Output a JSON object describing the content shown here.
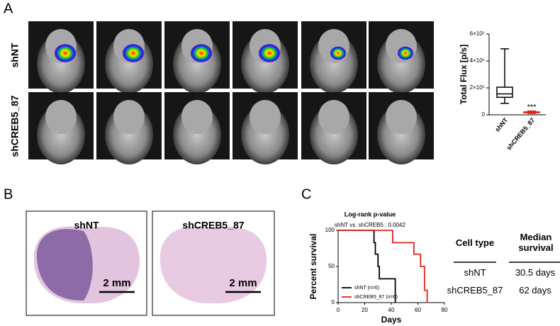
{
  "panels": {
    "a": "A",
    "b": "B",
    "c": "C"
  },
  "imaging": {
    "rows": [
      "shNT",
      "shCREB5_87"
    ]
  },
  "histology": {
    "titles": [
      "shNT",
      "shCREB5_87"
    ],
    "scale_bar": "2 mm"
  },
  "chart_data": [
    {
      "type": "box",
      "ylabel": "Total Flux [p/s]",
      "categories": [
        "shNT",
        "shCREB5_87"
      ],
      "boxes": [
        {
          "min": 85000,
          "q1": 130000,
          "median": 155000,
          "q3": 205000,
          "max": 490000,
          "color": "#000000"
        },
        {
          "min": 10000,
          "q1": 15000,
          "median": 18000,
          "q3": 22000,
          "max": 28000,
          "color": "#e8231f"
        }
      ],
      "annotation": "***",
      "ylim": [
        0,
        600000
      ],
      "yticks": [
        0,
        {
          "value": 200000,
          "label": "2×10⁵"
        },
        {
          "value": 400000,
          "label": "4×10⁵"
        },
        {
          "value": 600000,
          "label": "6×10⁵"
        }
      ]
    },
    {
      "type": "step",
      "title": "Log-rank p-value",
      "subtitle": "shNT vs. shCREB5 : 0.0042",
      "xlabel": "Days",
      "ylabel": "Percent survival",
      "xlim": [
        0,
        80
      ],
      "ylim": [
        0,
        100
      ],
      "xticks": [
        0,
        20,
        40,
        60,
        80
      ],
      "yticks": [
        0,
        50,
        100
      ],
      "series": [
        {
          "name": "shNT (n=6)",
          "color": "#000000",
          "x": [
            0,
            27,
            28,
            30,
            31,
            43
          ],
          "values": [
            100,
            83,
            67,
            50,
            33,
            0
          ]
        },
        {
          "name": "shCREB5_87 (n=6)",
          "color": "#e8231f",
          "x": [
            0,
            41,
            57,
            62,
            65,
            67
          ],
          "values": [
            100,
            83,
            67,
            50,
            17,
            0
          ]
        }
      ]
    }
  ],
  "table": {
    "header": [
      "Cell type",
      "Median survival"
    ],
    "rows": [
      [
        "shNT",
        "30.5 days"
      ],
      [
        "shCREB5_87",
        "62 days"
      ]
    ]
  }
}
